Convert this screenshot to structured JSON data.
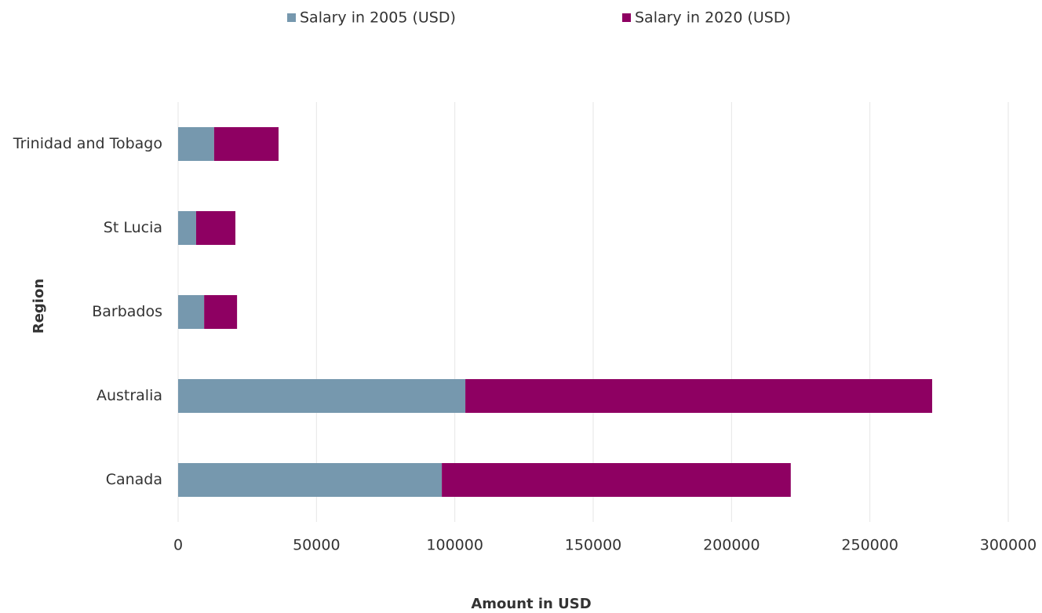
{
  "chart_data": {
    "type": "bar",
    "orientation": "horizontal",
    "stacked": true,
    "xlabel": "Amount in USD",
    "ylabel": "Region",
    "categories": [
      "Trinidad and Tobago",
      "St Lucia",
      "Barbados",
      "Australia",
      "Canada"
    ],
    "series": [
      {
        "name": "Salary in 2005 (USD)",
        "color": "#7698ae",
        "values": [
          13000,
          6500,
          9400,
          103800,
          95300
        ]
      },
      {
        "name": "Salary in 2020 (USD)",
        "color": "#8e0062",
        "values": [
          23300,
          14200,
          11900,
          168700,
          126100
        ]
      }
    ],
    "xlim": [
      0,
      300000
    ],
    "xticks": [
      0,
      50000,
      100000,
      150000,
      200000,
      250000,
      300000
    ],
    "grid": true,
    "legend": "top"
  }
}
